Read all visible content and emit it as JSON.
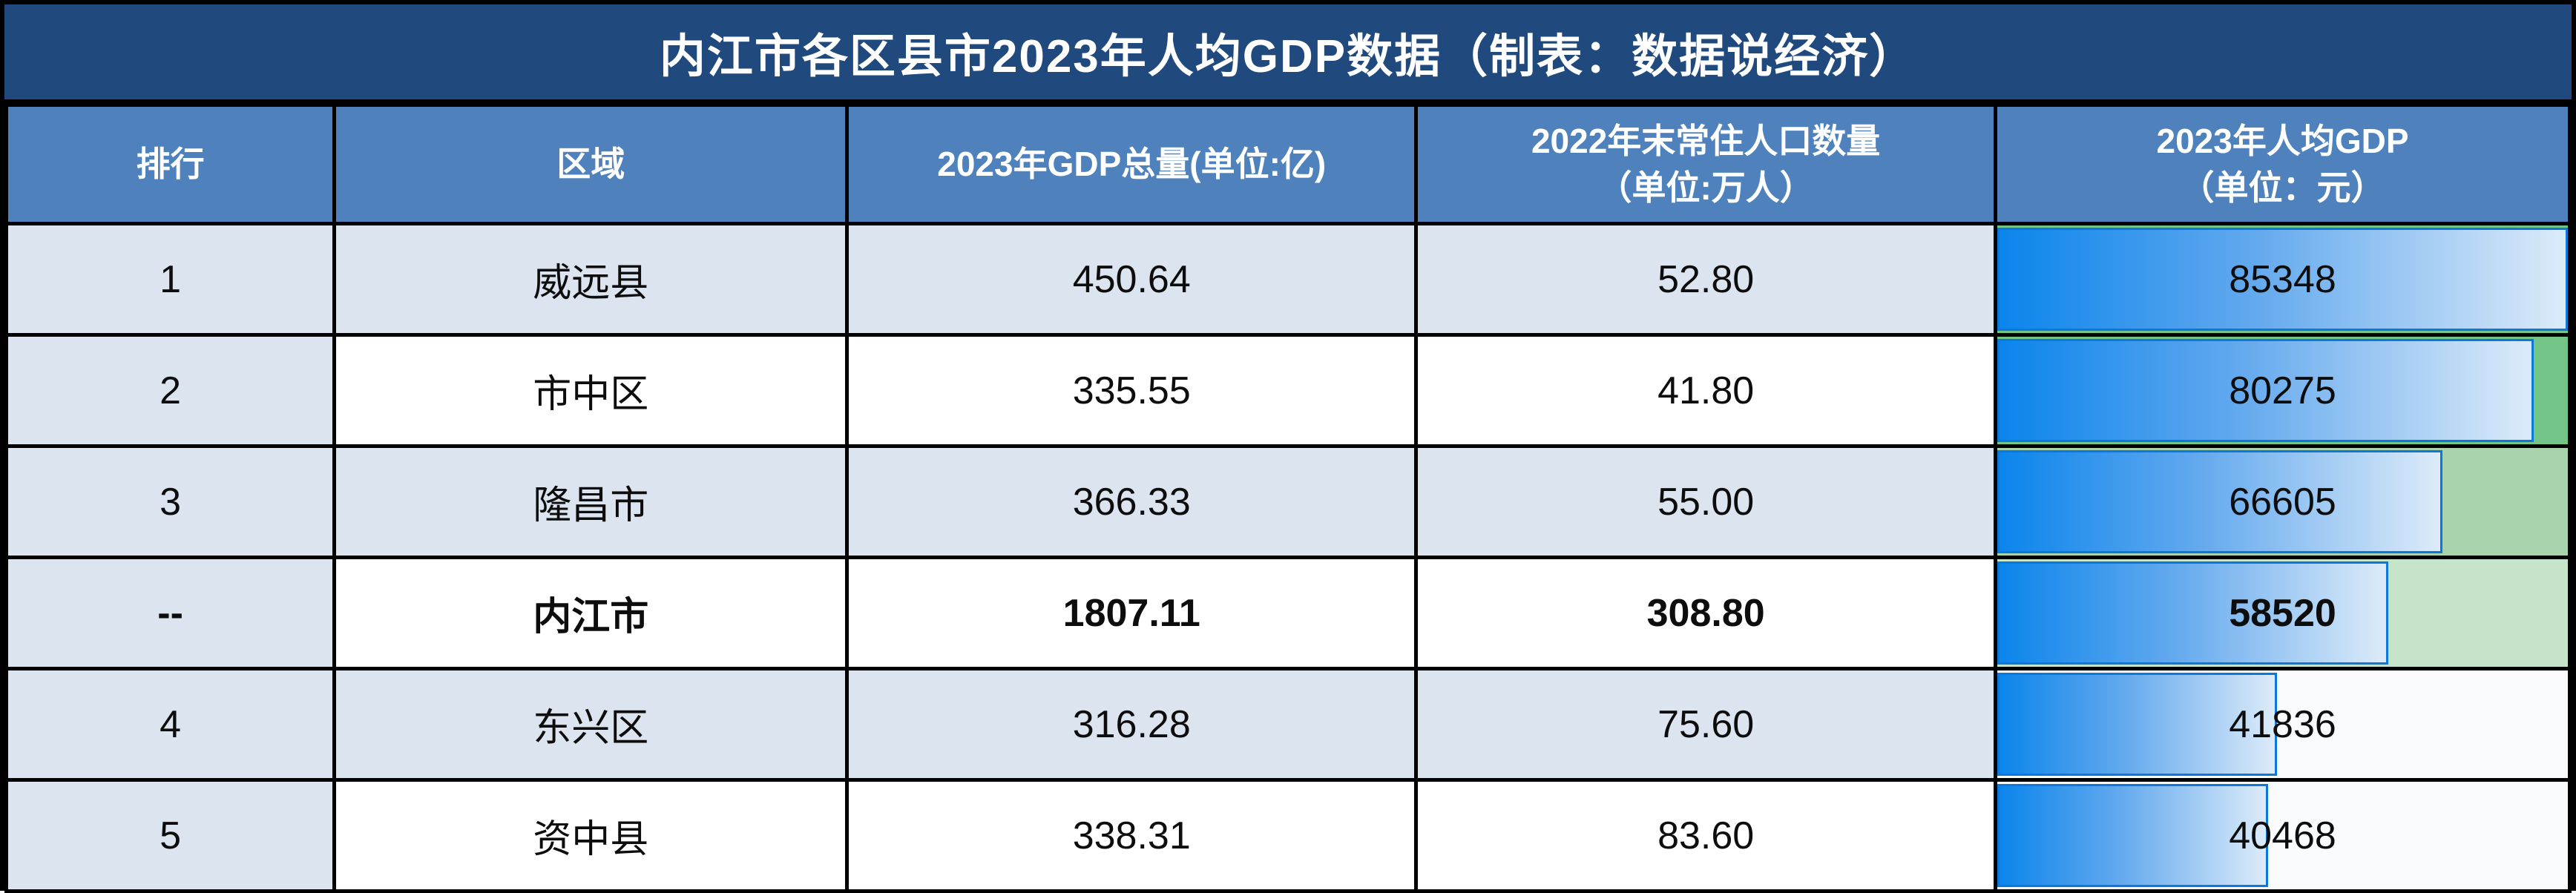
{
  "title": "内江市各区县市2023年人均GDP数据（制表：数据说经济）",
  "table": {
    "headers": [
      {
        "label": "排行"
      },
      {
        "label": "区域"
      },
      {
        "label": "2023年GDP总量(单位:亿)"
      },
      {
        "label": "2022年末常住人口数量\n（单位:万人）"
      },
      {
        "label": "2023年人均GDP\n（单位：元）"
      }
    ],
    "rows": [
      {
        "rank": "1",
        "region": "威远县",
        "gdp": "450.64",
        "population": "52.80",
        "per_capita": "85348",
        "bar_pct": 100,
        "remainder_bg": "#72c487",
        "shaded": true,
        "bold": false
      },
      {
        "rank": "2",
        "region": "市中区",
        "gdp": "335.55",
        "population": "41.80",
        "per_capita": "80275",
        "bar_pct": 94.06,
        "remainder_bg": "#72c487",
        "shaded": false,
        "bold": false
      },
      {
        "rank": "3",
        "region": "隆昌市",
        "gdp": "366.33",
        "population": "55.00",
        "per_capita": "66605",
        "bar_pct": 78.04,
        "remainder_bg": "#a8d3ac",
        "shaded": true,
        "bold": false
      },
      {
        "rank": "--",
        "region": "内江市",
        "gdp": "1807.11",
        "population": "308.80",
        "per_capita": "58520",
        "bar_pct": 68.57,
        "remainder_bg": "#c6e4c9",
        "shaded": false,
        "bold": true
      },
      {
        "rank": "4",
        "region": "东兴区",
        "gdp": "316.28",
        "population": "75.60",
        "per_capita": "41836",
        "bar_pct": 49.02,
        "remainder_bg": "#f8fafb",
        "shaded": true,
        "bold": false
      },
      {
        "rank": "5",
        "region": "资中县",
        "gdp": "338.31",
        "population": "83.60",
        "per_capita": "40468",
        "bar_pct": 47.41,
        "remainder_bg": "#fafbfd",
        "shaded": false,
        "bold": false
      }
    ]
  },
  "colors": {
    "title_bg": "#20497e",
    "header_bg": "#4f82bc",
    "shaded_row_bg": "#dce4ef",
    "white_row_bg": "#ffffff",
    "grid": "#000000",
    "bar_gradient_start": "#0b85ec",
    "bar_gradient_end": "#dcebf9",
    "bar_border": "#0e78d8"
  },
  "chart_data": {
    "type": "table",
    "title": "内江市各区县市2023年人均GDP数据（制表：数据说经济）",
    "columns": [
      "排行",
      "区域",
      "2023年GDP总量(单位:亿)",
      "2022年末常住人口数量（单位:万人）",
      "2023年人均GDP（单位：元）"
    ],
    "rows": [
      [
        "1",
        "威远县",
        450.64,
        52.8,
        85348
      ],
      [
        "2",
        "市中区",
        335.55,
        41.8,
        80275
      ],
      [
        "3",
        "隆昌市",
        366.33,
        55.0,
        66605
      ],
      [
        "--",
        "内江市",
        1807.11,
        308.8,
        58520
      ],
      [
        "4",
        "东兴区",
        316.28,
        75.6,
        41836
      ],
      [
        "5",
        "资中县",
        338.31,
        83.6,
        40468
      ]
    ],
    "databar": {
      "column": "2023年人均GDP（单位：元）",
      "axis_range": [
        0,
        85348
      ],
      "bar_color": "blue-gradient",
      "remainder_color_scale": "green (high value) to white (low value)"
    }
  }
}
